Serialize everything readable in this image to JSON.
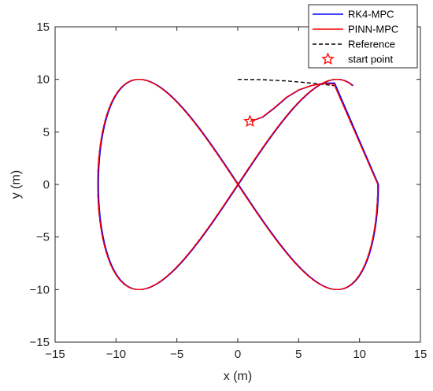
{
  "chart_data": {
    "type": "line",
    "xlabel": "x (m)",
    "ylabel": "y (m)",
    "xlim": [
      -15,
      15
    ],
    "ylim": [
      -15,
      15
    ],
    "xticks": [
      -15,
      -10,
      -5,
      0,
      5,
      10,
      15
    ],
    "yticks": [
      -15,
      -10,
      -5,
      0,
      5,
      10,
      15
    ],
    "xtick_labels": [
      "−15",
      "−10",
      "−5",
      "0",
      "5",
      "10",
      "15"
    ],
    "ytick_labels": [
      "−15",
      "−10",
      "−5",
      "0",
      "5",
      "10",
      "15"
    ],
    "grid": false,
    "legend_position": "top-right",
    "reference_curve": {
      "kind": "lemniscate",
      "amplitude_x": 11.5,
      "amplitude_y": 10,
      "t_start_deg": 90,
      "t_end_deg": 415
    },
    "series": [
      {
        "name": "RK4-MPC",
        "color": "#0000ff",
        "style": "solid",
        "approach_path": [
          [
            1,
            6
          ],
          [
            2,
            6.4
          ],
          [
            3,
            7.3
          ],
          [
            4,
            8.3
          ],
          [
            5,
            9.0
          ],
          [
            6,
            9.4
          ],
          [
            7,
            9.65
          ],
          [
            7.9,
            9.65
          ]
        ]
      },
      {
        "name": "PINN-MPC",
        "color": "#ff0000",
        "style": "solid",
        "approach_path": [
          [
            1,
            6
          ],
          [
            2,
            6.4
          ],
          [
            3,
            7.3
          ],
          [
            4,
            8.3
          ],
          [
            5,
            9.0
          ],
          [
            6,
            9.4
          ],
          [
            7,
            9.6
          ],
          [
            7.9,
            9.55
          ]
        ]
      },
      {
        "name": "Reference",
        "color": "#000000",
        "style": "dashed"
      },
      {
        "name": "start point",
        "color": "#ff0000",
        "marker": "star",
        "point": [
          1,
          6
        ]
      }
    ]
  }
}
